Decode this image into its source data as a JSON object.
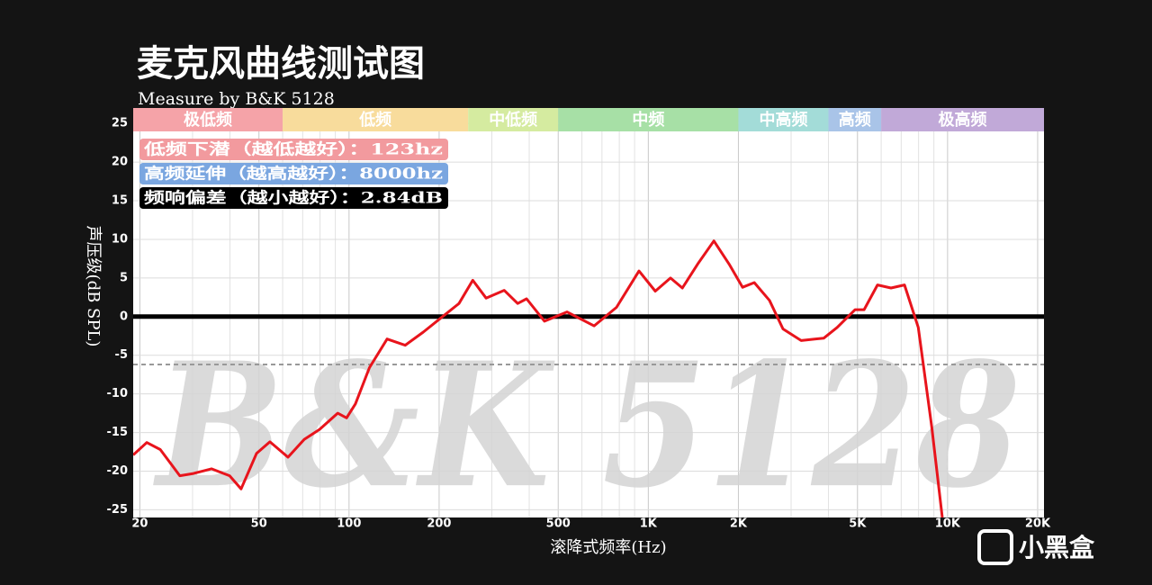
{
  "chart_data": {
    "type": "line",
    "title": "麦克风曲线测试图",
    "subtitle": "Measure by B&K 5128",
    "xlabel": "滚降式频率(Hz)",
    "ylabel": "声压级(dB SPL)",
    "watermark": "B&K 5128",
    "log_x": true,
    "grid": true,
    "color": "#e8141c",
    "xlim": [
      19,
      21000
    ],
    "ylim": [
      -26,
      27
    ],
    "xticks": [
      20,
      50,
      100,
      200,
      500,
      {
        "value": 1000,
        "label": "1K"
      },
      {
        "value": 2000,
        "label": "2K"
      },
      {
        "value": 5000,
        "label": "5K"
      },
      {
        "value": 10000,
        "label": "10K"
      },
      {
        "value": 20000,
        "label": "20K"
      }
    ],
    "x_minor_grid": [
      30,
      40,
      60,
      70,
      80,
      90,
      300,
      400,
      600,
      700,
      800,
      900,
      3000,
      4000,
      6000,
      7000,
      8000,
      9000
    ],
    "yticks": [
      25,
      20,
      15,
      10,
      5,
      0,
      -5,
      -10,
      -15,
      -20,
      -25
    ],
    "reference_lines": [
      {
        "value": 0,
        "color": "#000000",
        "width": 5,
        "dashed": false
      },
      {
        "value": -6.2,
        "color": "#999999",
        "width": 2,
        "dashed": true
      }
    ],
    "bands": [
      {
        "label": "极低频",
        "from": 19,
        "to": 60,
        "color": "#f5a3a8"
      },
      {
        "label": "低频",
        "from": 60,
        "to": 250,
        "color": "#f8dc9c"
      },
      {
        "label": "中低频",
        "from": 250,
        "to": 500,
        "color": "#d5eba0"
      },
      {
        "label": "中频",
        "from": 500,
        "to": 2000,
        "color": "#a7e0a6"
      },
      {
        "label": "中高频",
        "from": 2000,
        "to": 4000,
        "color": "#a3dcd8"
      },
      {
        "label": "高频",
        "from": 4000,
        "to": 6000,
        "color": "#a9c4e8"
      },
      {
        "label": "极高频",
        "from": 6000,
        "to": 21000,
        "color": "#c1a9d8"
      }
    ],
    "annotations": [
      {
        "text": "低频下潜（越低越好）：123hz",
        "color": "#f29a9e"
      },
      {
        "text": "高频延伸（越高越好）：8000hz",
        "color": "#7aa6e0"
      },
      {
        "text": "频响偏差（越小越好）：2.84dB",
        "color": "#000000"
      }
    ],
    "x": [
      19,
      21.1,
      23.4,
      27.2,
      30.2,
      34.7,
      39.9,
      43.6,
      49.1,
      54.4,
      62.5,
      70.8,
      79.7,
      91.6,
      98.1,
      105,
      117,
      134,
      154,
      177,
      210,
      233,
      259,
      287,
      330,
      366,
      392,
      450,
      535,
      659,
      783,
      931,
      1055,
      1186,
      1300,
      1462,
      1656,
      1862,
      2066,
      2260,
      2541,
      2818,
      3243,
      3597,
      3854,
      4276,
      4910,
      5260,
      5834,
      6471,
      7178,
      7980,
      8850,
      9600
    ],
    "values": [
      -17.9,
      -16.3,
      -17.2,
      -20.6,
      -20.3,
      -19.7,
      -20.6,
      -22.3,
      -17.7,
      -16.2,
      -18.2,
      -15.9,
      -14.6,
      -12.5,
      -13.1,
      -11.3,
      -6.6,
      -2.9,
      -3.7,
      -2.0,
      0.3,
      1.7,
      4.7,
      2.4,
      3.4,
      1.7,
      2.3,
      -0.6,
      0.6,
      -1.2,
      1.2,
      5.9,
      3.3,
      5.0,
      3.7,
      6.8,
      9.8,
      6.8,
      3.8,
      4.4,
      2.1,
      -1.6,
      -3.1,
      -2.9,
      -2.8,
      -1.4,
      0.9,
      0.9,
      4.1,
      3.7,
      4.1,
      -1.4,
      -14.2,
      -26
    ]
  },
  "brand": "小黑盒"
}
